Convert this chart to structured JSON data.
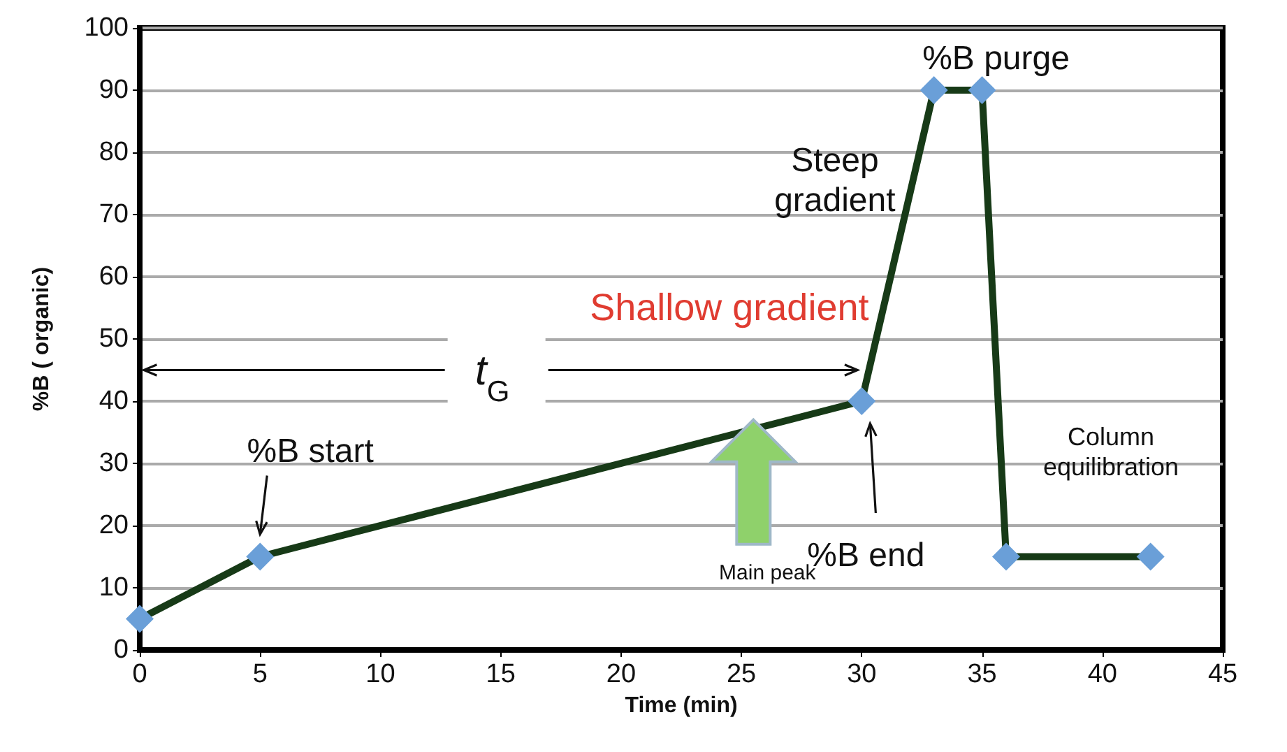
{
  "chart_data": {
    "type": "line",
    "xlabel": "Time (min)",
    "ylabel": "%B ( organic)",
    "x": [
      0,
      5,
      30,
      33,
      35,
      36,
      42
    ],
    "series": [
      {
        "color": "#173a17",
        "colors": [
          "#6a9fd8",
          "#6a9fd8",
          "#6a9fd8",
          "#6a9fd8",
          "#6a9fd8",
          "#6a9fd8",
          "#6a9fd8"
        ],
        "values": [
          5,
          15,
          40,
          90,
          90,
          15,
          15
        ]
      }
    ],
    "xlim": [
      0,
      45
    ],
    "xticks": [
      0,
      5,
      10,
      15,
      20,
      25,
      30,
      35,
      40,
      45
    ],
    "ylim": [
      0,
      100
    ],
    "yticks": [
      0,
      10,
      20,
      30,
      40,
      50,
      60,
      70,
      80,
      90,
      100
    ],
    "grid": "y",
    "marker": "diamond",
    "line_style": "solid",
    "annotations": [
      {
        "text": "%B start",
        "x": 5,
        "y": 15
      },
      "Shallow gradient",
      "t$_{G}$",
      "Steep gradient",
      {
        "text": "%B purge",
        "x": 35,
        "y": 90
      },
      "%B end",
      "Column equilibration",
      "Main peak"
    ]
  }
}
